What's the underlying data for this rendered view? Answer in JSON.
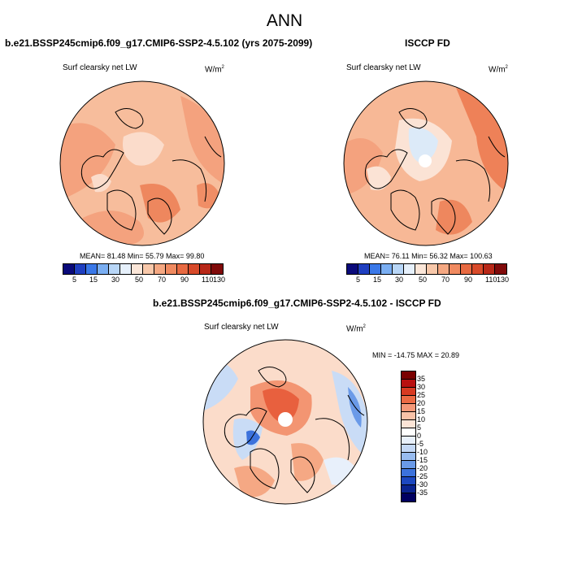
{
  "figure_title": "ANN",
  "panels": [
    {
      "title": "b.e21.BSSP245cmip6.f09_g17.CMIP6-SSP2-4.5.102 (yrs 2075-2099)",
      "variable": "Surf clearsky net LW",
      "units_base": "W/m",
      "units_exp": "2",
      "stats": "MEAN=  81.48  Min=  55.79  Max=  99.80",
      "colorbar_ticks": [
        "5",
        "15",
        "30",
        "50",
        "70",
        "90",
        "110",
        "130"
      ]
    },
    {
      "title": "ISCCP FD",
      "variable": "Surf clearsky net LW",
      "units_base": "W/m",
      "units_exp": "2",
      "stats": "MEAN=  76.11  Min=  56.32  Max= 100.63",
      "colorbar_ticks": [
        "5",
        "15",
        "30",
        "50",
        "70",
        "90",
        "110",
        "130"
      ]
    },
    {
      "title": "b.e21.BSSP245cmip6.f09_g17.CMIP6-SSP2-4.5.102 - ISCCP FD",
      "variable": "Surf clearsky net LW",
      "units_base": "W/m",
      "units_exp": "2",
      "stats": "MIN = -14.75 MAX =  20.89",
      "colorbar_ticks": [
        "35",
        "30",
        "25",
        "20",
        "15",
        "10",
        "5",
        "0",
        "-5",
        "-10",
        "-15",
        "-20",
        "-25",
        "-30",
        "-35"
      ]
    }
  ],
  "colors": {
    "abs_scale": [
      "#0a0a7a",
      "#1f3fc0",
      "#3a78e8",
      "#7aaef2",
      "#b8d6f7",
      "#e6f0fb",
      "#fbe6d8",
      "#f8c8aa",
      "#f5a882",
      "#f08a60",
      "#e86a42",
      "#d84a2a",
      "#b82818",
      "#800a0a"
    ],
    "diff_scale": [
      "#7a0000",
      "#b81010",
      "#d83a22",
      "#ec6a44",
      "#f59878",
      "#f9c2a8",
      "#fce4d6",
      "#e8f0fb",
      "#c4d8f6",
      "#98bcf0",
      "#6a9ae8",
      "#3c72dc",
      "#1c48c0",
      "#0a2490",
      "#000060"
    ]
  }
}
